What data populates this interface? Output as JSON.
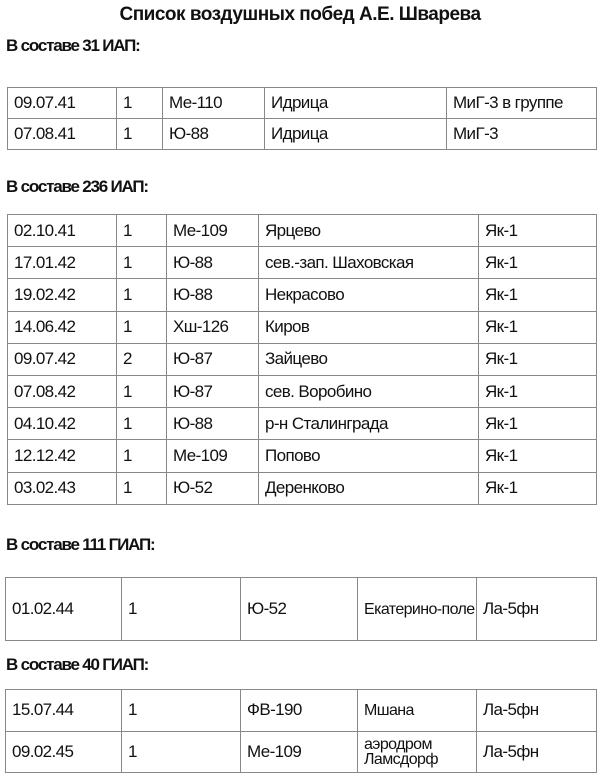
{
  "title": "Список воздушных побед А.Е.  Шварева",
  "sections": [
    {
      "heading": "В составе 31 ИАП:",
      "rows": [
        [
          "09.07.41",
          "1",
          "Ме-110",
          "Идрица",
          "МиГ-3 в группе"
        ],
        [
          "07.08.41",
          "1",
          "Ю-88",
          "Идрица",
          "МиГ-3"
        ]
      ]
    },
    {
      "heading": "В составе 236 ИАП:",
      "rows": [
        [
          "02.10.41",
          "1",
          "Ме-109",
          "Ярцево",
          "Як-1"
        ],
        [
          "17.01.42",
          "1",
          "Ю-88",
          "сев.-зап. Шаховская",
          "Як-1"
        ],
        [
          "19.02.42",
          "1",
          "Ю-88",
          "Некрасово",
          "Як-1"
        ],
        [
          "14.06.42",
          "1",
          "Хш-126",
          "Киров",
          "Як-1"
        ],
        [
          "09.07.42",
          "2",
          "Ю-87",
          "Зайцево",
          "Як-1"
        ],
        [
          "07.08.42",
          "1",
          "Ю-87",
          "сев. Воробино",
          "Як-1"
        ],
        [
          "04.10.42",
          "1",
          "Ю-88",
          "р-н Сталинграда",
          "Як-1"
        ],
        [
          "12.12.42",
          "1",
          "Ме-109",
          "Попово",
          "Як-1"
        ],
        [
          "03.02.43",
          "1",
          "Ю-52",
          "Деренково",
          "Як-1"
        ]
      ]
    },
    {
      "heading": "В составе 111 ГИАП:",
      "rows": [
        [
          "01.02.44",
          "1",
          "Ю-52",
          "Екатерино-поле",
          "Ла-5фн"
        ]
      ]
    },
    {
      "heading": "В составе 40 ГИАП:",
      "rows": [
        [
          "15.07.44",
          "1",
          "ФВ-190",
          "Мшана",
          "Ла-5фн"
        ],
        [
          "09.02.45",
          "1",
          "Ме-109",
          "аэродром Ламсдорф",
          "Ла-5фн"
        ]
      ]
    }
  ]
}
